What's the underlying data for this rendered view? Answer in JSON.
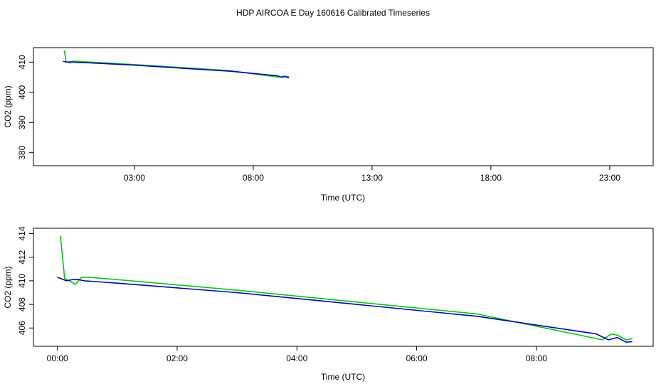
{
  "title": "HDP AIRCOA E  Day 160616  Calibrated Timeseries",
  "colors": {
    "green": "#00cc00",
    "blue": "#0000cc",
    "axis": "#000000"
  },
  "chart_data": [
    {
      "type": "line",
      "xlabel": "Time (UTC)",
      "ylabel": "CO2 (ppm)",
      "xlim": [
        -1.25,
        24.83
      ],
      "ylim": [
        375.7,
        414.8
      ],
      "xticks": [
        3,
        8,
        13,
        18,
        23
      ],
      "xtick_labels": [
        "03:00",
        "08:00",
        "13:00",
        "18:00",
        "23:00"
      ],
      "yticks": [
        380,
        390,
        400,
        410
      ],
      "ytick_labels": [
        "380",
        "390",
        "400",
        "410"
      ],
      "series": [
        {
          "name": "green",
          "color": "#00cc00",
          "x": [
            0.05,
            0.12,
            0.2,
            0.3,
            0.4,
            0.5,
            1.0,
            3.0,
            5.0,
            7.0,
            9.1,
            9.3,
            9.5
          ],
          "y": [
            413.8,
            410.2,
            410.0,
            409.7,
            410.3,
            410.3,
            410.1,
            409.2,
            408.2,
            407.2,
            405.0,
            405.4,
            405.1
          ]
        },
        {
          "name": "blue",
          "color": "#0000cc",
          "x": [
            0.0,
            0.15,
            0.25,
            0.35,
            0.45,
            1.0,
            3.0,
            5.0,
            7.0,
            9.0,
            9.2,
            9.35,
            9.5
          ],
          "y": [
            410.3,
            410.0,
            410.1,
            410.1,
            410.0,
            409.8,
            409.0,
            408.0,
            407.0,
            405.5,
            405.0,
            405.2,
            404.8
          ]
        }
      ]
    },
    {
      "type": "line",
      "xlabel": "Time (UTC)",
      "ylabel": "CO2 (ppm)",
      "xlim": [
        -0.4,
        9.95
      ],
      "ylim": [
        404.45,
        414.45
      ],
      "xticks": [
        0,
        2,
        4,
        6,
        8
      ],
      "xtick_labels": [
        "00:00",
        "02:00",
        "04:00",
        "06:00",
        "08:00"
      ],
      "yticks": [
        406,
        408,
        410,
        412,
        414
      ],
      "ytick_labels": [
        "406",
        "408",
        "410",
        "412",
        "414"
      ],
      "series": [
        {
          "name": "green",
          "color": "#00cc00",
          "x": [
            0.05,
            0.12,
            0.2,
            0.3,
            0.4,
            0.5,
            1.0,
            3.0,
            5.0,
            7.0,
            9.1,
            9.25,
            9.35,
            9.5,
            9.6
          ],
          "y": [
            413.8,
            410.2,
            410.0,
            409.7,
            410.3,
            410.3,
            410.1,
            409.2,
            408.2,
            407.2,
            405.0,
            405.5,
            405.4,
            405.0,
            405.1
          ]
        },
        {
          "name": "blue",
          "color": "#0000cc",
          "x": [
            0.0,
            0.15,
            0.25,
            0.35,
            0.45,
            1.0,
            3.0,
            5.0,
            7.0,
            9.0,
            9.2,
            9.35,
            9.5,
            9.6
          ],
          "y": [
            410.3,
            410.0,
            410.1,
            410.1,
            410.0,
            409.8,
            409.0,
            408.0,
            407.0,
            405.5,
            405.0,
            405.2,
            404.8,
            404.85
          ]
        }
      ]
    }
  ]
}
